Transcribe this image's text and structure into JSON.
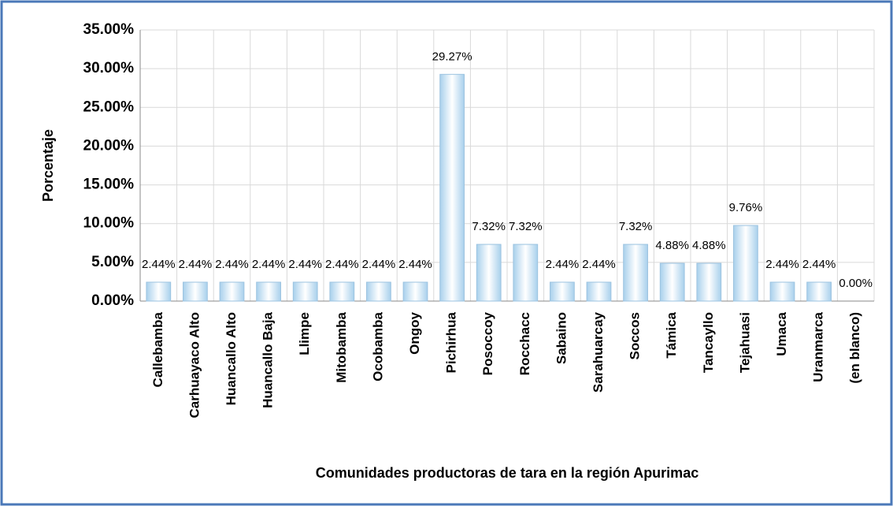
{
  "chart_data": {
    "type": "bar",
    "xlabel": "Comunidades productoras de tara en la región Apurimac",
    "ylabel": "Porcentaje",
    "categories": [
      "Callebamba",
      "Carhuayaco Alto",
      "Huancallo Alto",
      "Huancallo Baja",
      "Llimpe",
      "Mitobamba",
      "Ocobamba",
      "Ongoy",
      "Pichirhua",
      "Posoccoy",
      "Rocchacc",
      "Sabaino",
      "Sarahuarcay",
      "Soccos",
      "Támica",
      "Tancayllo",
      "Tejahuasi",
      "Umaca",
      "Uranmarca",
      "(en blanco)"
    ],
    "values": [
      2.44,
      2.44,
      2.44,
      2.44,
      2.44,
      2.44,
      2.44,
      2.44,
      29.27,
      7.32,
      7.32,
      2.44,
      2.44,
      7.32,
      4.88,
      4.88,
      9.76,
      2.44,
      2.44,
      0
    ],
    "value_labels": [
      "2.44%",
      "2.44%",
      "2.44%",
      "2.44%",
      "2.44%",
      "2.44%",
      "2.44%",
      "2.44%",
      "29.27%",
      "7.32%",
      "7.32%",
      "2.44%",
      "2.44%",
      "7.32%",
      "4.88%",
      "4.88%",
      "9.76%",
      "2.44%",
      "2.44%",
      "0.00%"
    ],
    "color": "#a8d0ec",
    "ylim": [
      0,
      35
    ],
    "yticks": [
      {
        "value": 0,
        "label": "0.00%"
      },
      {
        "value": 5,
        "label": "5.00%"
      },
      {
        "value": 10,
        "label": "10.00%"
      },
      {
        "value": 15,
        "label": "15.00%"
      },
      {
        "value": 20,
        "label": "20.00%"
      },
      {
        "value": 25,
        "label": "25.00%"
      },
      {
        "value": 30,
        "label": "30.00%"
      },
      {
        "value": 35,
        "label": "35.00%"
      }
    ],
    "grid": true
  }
}
